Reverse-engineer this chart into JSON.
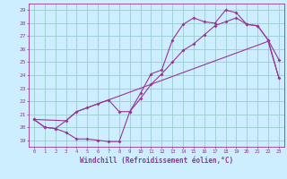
{
  "xlabel": "Windchill (Refroidissement éolien,°C)",
  "bg_color": "#cceeff",
  "line_color": "#993399",
  "grid_color": "#99cccc",
  "xlim": [
    -0.5,
    23.5
  ],
  "ylim": [
    18.5,
    29.5
  ],
  "xticks": [
    0,
    1,
    2,
    3,
    4,
    5,
    6,
    7,
    8,
    9,
    10,
    11,
    12,
    13,
    14,
    15,
    16,
    17,
    18,
    19,
    20,
    21,
    22,
    23
  ],
  "yticks": [
    19,
    20,
    21,
    22,
    23,
    24,
    25,
    26,
    27,
    28,
    29
  ],
  "curve1_x": [
    0,
    1,
    2,
    3,
    4,
    5,
    6,
    7,
    8,
    9,
    10,
    11,
    12,
    13,
    14,
    15,
    16,
    17,
    18,
    19,
    20,
    21,
    22,
    23
  ],
  "curve1_y": [
    20.6,
    20.0,
    19.9,
    19.6,
    19.1,
    19.1,
    19.0,
    18.9,
    18.9,
    21.2,
    22.6,
    24.1,
    24.4,
    26.7,
    27.9,
    28.4,
    28.1,
    28.0,
    29.0,
    28.8,
    27.9,
    27.8,
    26.7,
    25.2
  ],
  "curve2_x": [
    0,
    1,
    2,
    3,
    4,
    5,
    6,
    7,
    8,
    9,
    10,
    11,
    12,
    13,
    14,
    15,
    16,
    17,
    18,
    19,
    20,
    21,
    22,
    23
  ],
  "curve2_y": [
    20.6,
    20.0,
    19.9,
    20.5,
    21.2,
    21.5,
    21.8,
    22.1,
    21.2,
    21.2,
    22.2,
    23.3,
    24.1,
    25.0,
    25.9,
    26.4,
    27.1,
    27.8,
    28.1,
    28.4,
    27.9,
    27.8,
    26.7,
    23.8
  ],
  "curve3_x": [
    0,
    3,
    4,
    5,
    6,
    7,
    8,
    9,
    10,
    11,
    12,
    13,
    14,
    15,
    16,
    17,
    18,
    19,
    20,
    21,
    22,
    23
  ],
  "curve3_y": [
    20.6,
    20.5,
    21.2,
    21.5,
    21.8,
    22.1,
    22.4,
    22.7,
    23.0,
    23.3,
    23.6,
    23.9,
    24.2,
    24.5,
    24.8,
    25.1,
    25.4,
    25.7,
    26.0,
    26.3,
    26.6,
    23.8
  ]
}
